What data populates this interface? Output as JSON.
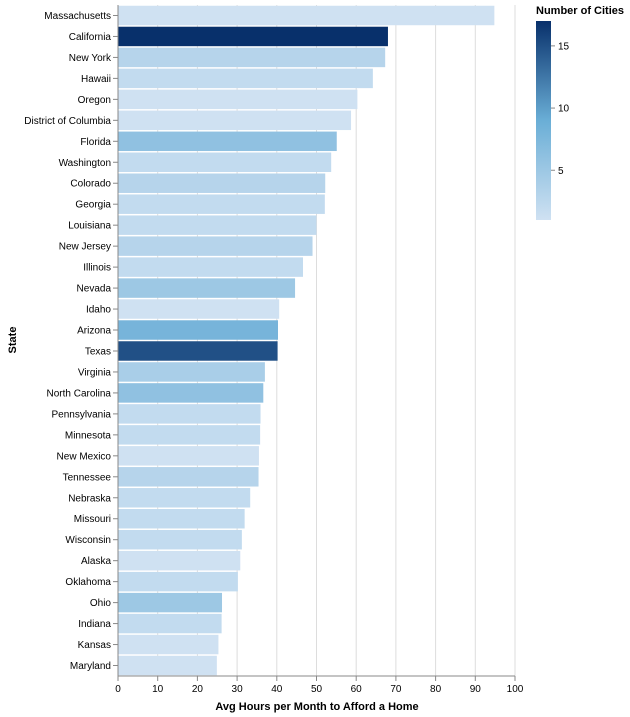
{
  "chart_data": {
    "type": "bar",
    "orientation": "horizontal",
    "xlabel": "Avg Hours per Month to Afford a Home",
    "ylabel": "State",
    "xlim": [
      0,
      100
    ],
    "x_ticks": [
      0,
      10,
      20,
      30,
      40,
      50,
      60,
      70,
      80,
      90,
      100
    ],
    "grid": true,
    "categories": [
      "Massachusetts",
      "California",
      "New York",
      "Hawaii",
      "Oregon",
      "District of Columbia",
      "Florida",
      "Washington",
      "Colorado",
      "Georgia",
      "Louisiana",
      "New Jersey",
      "Illinois",
      "Nevada",
      "Idaho",
      "Arizona",
      "Texas",
      "Virginia",
      "North Carolina",
      "Pennsylvania",
      "Minnesota",
      "New Mexico",
      "Tennessee",
      "Nebraska",
      "Missouri",
      "Wisconsin",
      "Alaska",
      "Oklahoma",
      "Ohio",
      "Indiana",
      "Kansas",
      "Maryland"
    ],
    "values": [
      94.8,
      68.0,
      67.3,
      64.2,
      60.3,
      58.7,
      55.1,
      53.7,
      52.2,
      52.1,
      50.0,
      49.0,
      46.6,
      44.6,
      40.6,
      40.3,
      40.2,
      37.0,
      36.6,
      35.9,
      35.8,
      35.5,
      35.4,
      33.3,
      31.9,
      31.2,
      30.8,
      30.2,
      26.2,
      26.1,
      25.3,
      24.9
    ],
    "color_values": [
      1,
      17,
      3,
      2,
      1,
      1,
      6,
      2,
      3,
      2,
      2,
      3,
      2,
      5,
      1,
      8,
      15,
      4,
      6,
      2,
      2,
      1,
      3,
      2,
      2,
      2,
      1,
      2,
      5,
      2,
      1,
      1
    ],
    "legend": {
      "title": "Number of Cities",
      "position": "top-right",
      "domain": [
        1,
        17
      ],
      "ticks": [
        5,
        10,
        15
      ],
      "color_low": "#cfe1f2",
      "color_mid": "#6aaed6",
      "color_high": "#08306b"
    }
  }
}
